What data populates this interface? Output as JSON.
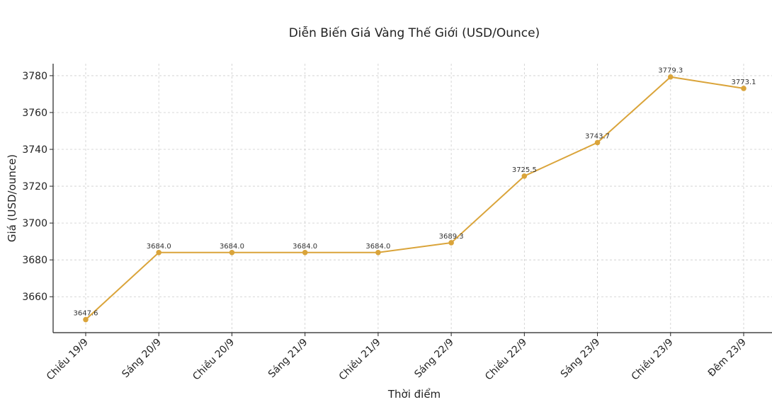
{
  "chart_data": {
    "type": "line",
    "title": "Diễn Biến Giá Vàng Thế Giới (USD/Ounce)",
    "xlabel": "Thời điểm",
    "ylabel": "Giá (USD/ounce)",
    "categories": [
      "Chiều 19/9",
      "Sáng 20/9",
      "Chiều 20/9",
      "Sáng 21/9",
      "Chiều 21/9",
      "Sáng 22/9",
      "Chiều 22/9",
      "Sáng 23/9",
      "Chiều 23/9",
      "Đêm 23/9"
    ],
    "values": [
      3647.6,
      3684.0,
      3684.0,
      3684.0,
      3684.0,
      3689.3,
      3725.5,
      3743.7,
      3779.3,
      3773.1
    ],
    "data_labels": [
      "3647.6",
      "3684.0",
      "3684.0",
      "3684.0",
      "3684.0",
      "3689.3",
      "3725.5",
      "3743.7",
      "3779.3",
      "3773.1"
    ],
    "ylim": [
      3640.5,
      3786.5
    ],
    "yticks": [
      3660,
      3680,
      3700,
      3720,
      3740,
      3760,
      3780
    ],
    "grid": true,
    "line_color": "#DAA43A"
  }
}
